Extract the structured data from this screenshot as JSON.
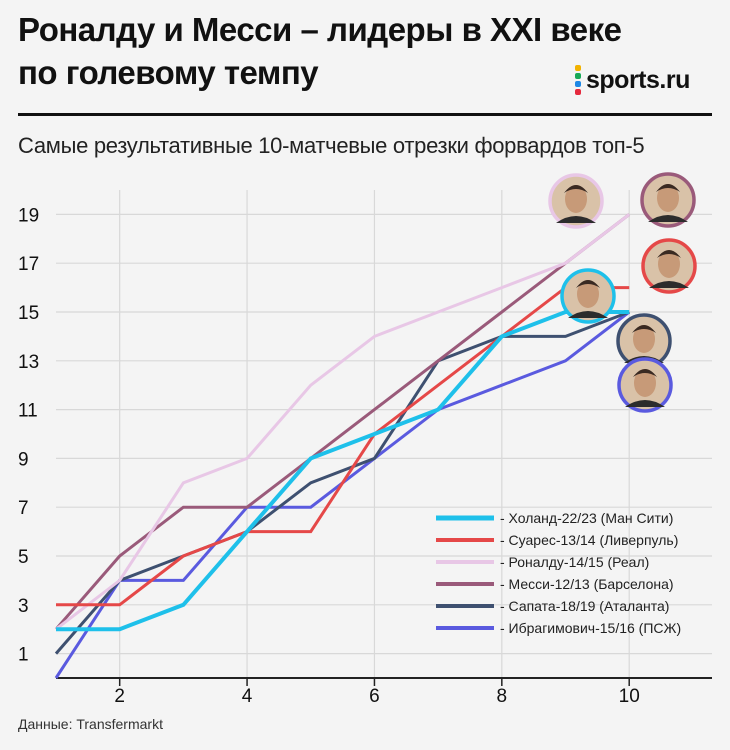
{
  "header": {
    "title_line1": "Роналду и Месси – лидеры в XXI веке",
    "title_line2": "по голевому темпу",
    "logo_text": "sports.ru",
    "logo_dot_colors": [
      "#f2b200",
      "#18a957",
      "#1e88e5",
      "#e5293d"
    ]
  },
  "subtitle": "Самые результативные 10-матчевые отрезки форвардов топ-5",
  "source": "Данные: Transfermarkt",
  "colors": {
    "background": "#f4f4f4",
    "grid": "#d8d8d8",
    "axis": "#222222"
  },
  "chart_data": {
    "type": "line",
    "xlabel": "",
    "ylabel": "",
    "x": [
      1,
      2,
      3,
      4,
      5,
      6,
      7,
      8,
      9,
      10
    ],
    "xlim": [
      1,
      11.3
    ],
    "ylim": [
      0,
      20
    ],
    "x_ticks": [
      "2",
      "4",
      "6",
      "8",
      "10"
    ],
    "y_ticks": [
      "1",
      "3",
      "5",
      "7",
      "9",
      "11",
      "13",
      "15",
      "17",
      "19"
    ],
    "grid": true,
    "legend_position": "bottom-right",
    "series": [
      {
        "name": "- Холанд-22/23 (Ман Сити)",
        "color": "#1ec0ea",
        "values": [
          2,
          2,
          3,
          6,
          9,
          10,
          11,
          14,
          15,
          15
        ],
        "player_icon": "haaland-avatar-icon",
        "avatar_ring": "#1ec0ea"
      },
      {
        "name": "- Суарес-13/14 (Ливерпуль)",
        "color": "#e54848",
        "values": [
          3,
          3,
          5,
          6,
          6,
          10,
          12,
          14,
          16,
          16
        ],
        "player_icon": "suarez-avatar-icon",
        "avatar_ring": "#e54848"
      },
      {
        "name": "- Роналду-14/15 (Реал)",
        "color": "#e8c7e6",
        "values": [
          2,
          4,
          8,
          9,
          12,
          14,
          15,
          16,
          17,
          19
        ],
        "player_icon": "ronaldo-avatar-icon",
        "avatar_ring": "#e8c7e6"
      },
      {
        "name": "- Месси-12/13 (Барселона)",
        "color": "#9a5a7a",
        "values": [
          2,
          5,
          7,
          7,
          9,
          11,
          13,
          15,
          17,
          19
        ],
        "player_icon": "messi-avatar-icon",
        "avatar_ring": "#9a5a7a"
      },
      {
        "name": "- Сапата-18/19 (Аталанта)",
        "color": "#3e5070",
        "values": [
          1,
          4,
          5,
          6,
          8,
          9,
          13,
          14,
          14,
          15
        ],
        "player_icon": "zapata-avatar-icon",
        "avatar_ring": "#3e5070"
      },
      {
        "name": "- Ибрагимович-15/16 (ПСЖ)",
        "color": "#5a5adf",
        "values": [
          0,
          4,
          4,
          7,
          7,
          9,
          11,
          12,
          13,
          15
        ],
        "player_icon": "ibrahimovic-avatar-icon",
        "avatar_ring": "#5a5adf"
      }
    ]
  }
}
